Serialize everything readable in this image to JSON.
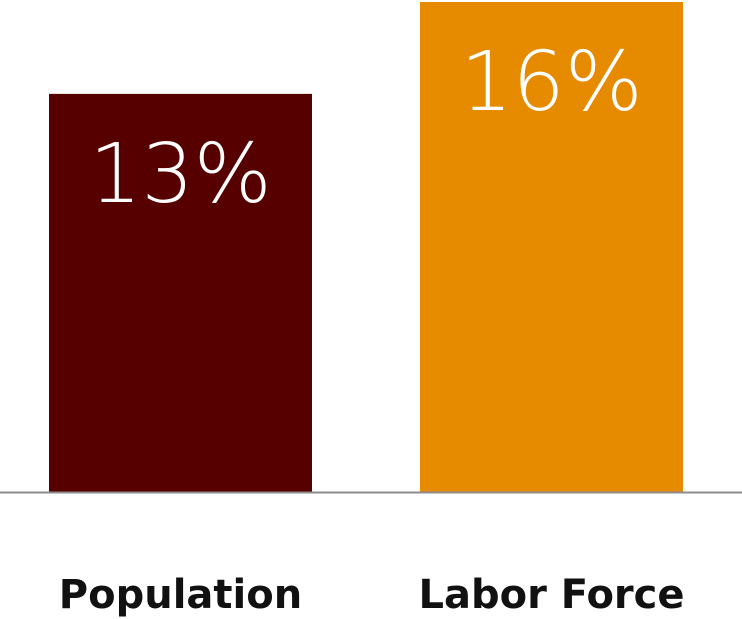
{
  "chart_data": {
    "type": "bar",
    "categories": [
      "Population",
      "Labor Force"
    ],
    "values": [
      13,
      16
    ],
    "value_labels": [
      "13%",
      "16%"
    ],
    "colors": [
      "#560000",
      "#e68a00"
    ]
  }
}
